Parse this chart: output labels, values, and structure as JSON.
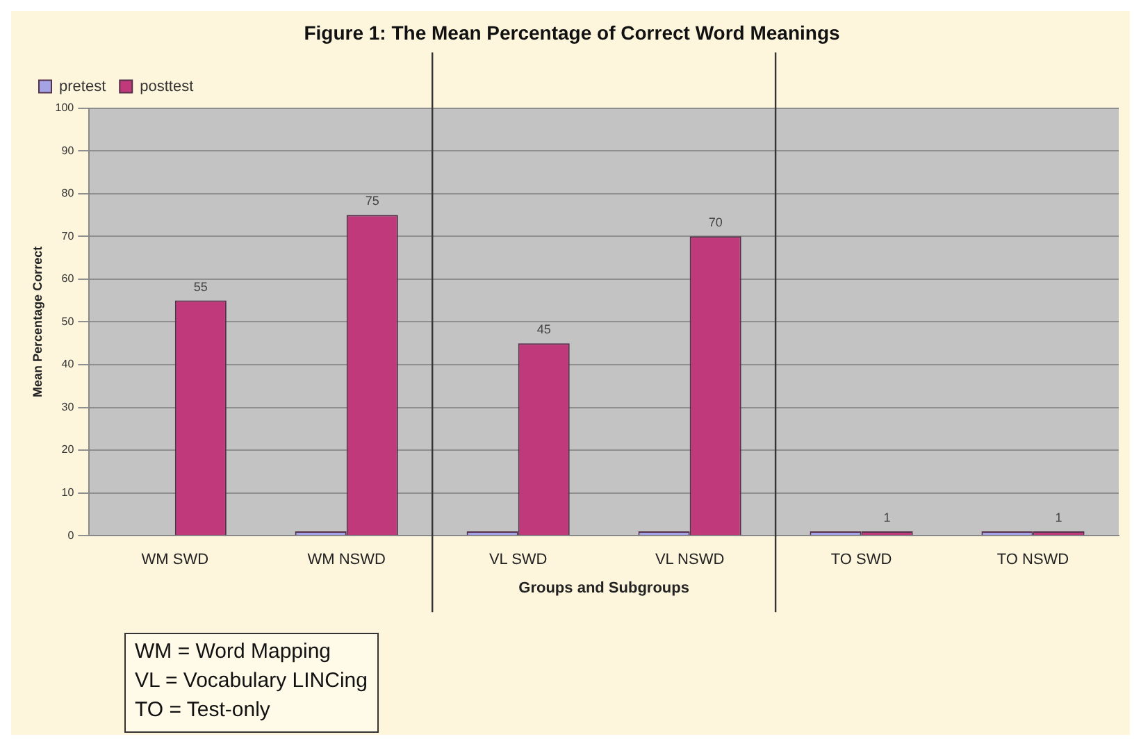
{
  "chart_data": {
    "type": "bar",
    "title": "Figure 1: The Mean Percentage of Correct Word Meanings",
    "xlabel": "Groups and Subgroups",
    "ylabel": "Mean Percentage Correct",
    "categories": [
      "WM SWD",
      "WM NSWD",
      "VL SWD",
      "VL NSWD",
      "TO SWD",
      "TO NSWD"
    ],
    "series": [
      {
        "name": "pretest",
        "color": "#a3a3e6",
        "values": [
          0,
          1,
          1,
          1,
          1,
          1
        ]
      },
      {
        "name": "posttest",
        "color": "#c0397a",
        "values": [
          55,
          75,
          45,
          70,
          1,
          1
        ],
        "value_labels": [
          "55",
          "75",
          "45",
          "70",
          "1",
          "1"
        ]
      }
    ],
    "ylim": [
      0,
      100
    ],
    "yticks": [
      0,
      10,
      20,
      30,
      40,
      50,
      60,
      70,
      80,
      90,
      100
    ],
    "grid": "y",
    "legend": "top left",
    "annotations": [
      "WM = Word Mapping",
      "VL = Vocabulary LINCing",
      "TO = Test-only"
    ]
  }
}
